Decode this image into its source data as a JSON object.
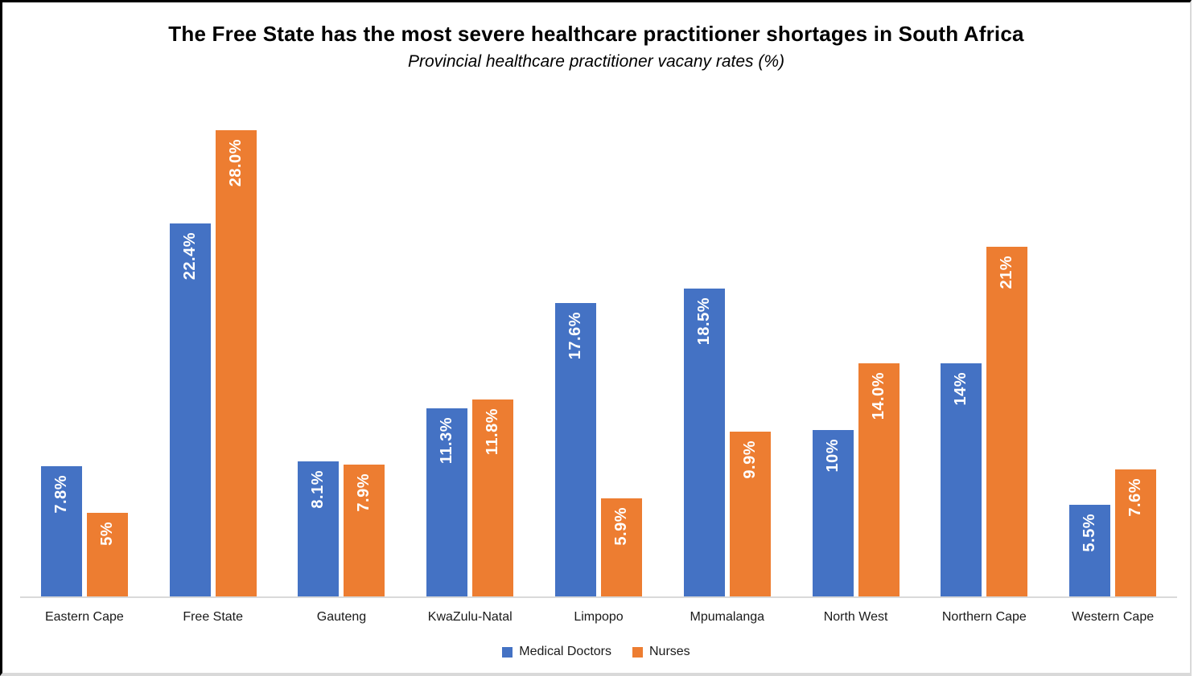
{
  "chart_data": {
    "type": "bar",
    "title": "The Free State has the most severe healthcare practitioner shortages in South Africa",
    "subtitle": "Provincial healthcare practitioner vacany rates (%)",
    "categories": [
      "Eastern Cape",
      "Free State",
      "Gauteng",
      "KwaZulu-Natal",
      "Limpopo",
      "Mpumalanga",
      "North West",
      "Northern Cape",
      "Western Cape"
    ],
    "series": [
      {
        "name": "Medical Doctors",
        "color": "#4472C4",
        "values": [
          7.8,
          22.4,
          8.1,
          11.3,
          17.6,
          18.5,
          10,
          14,
          5.5
        ],
        "labels": [
          "7.8%",
          "22.4%",
          "8.1%",
          "11.3%",
          "17.6%",
          "18.5%",
          "10%",
          "14%",
          "5.5%"
        ]
      },
      {
        "name": "Nurses",
        "color": "#ED7D31",
        "values": [
          5,
          28,
          7.9,
          11.8,
          5.9,
          9.9,
          14,
          21,
          7.6
        ],
        "labels": [
          "5%",
          "28.0%",
          "7.9%",
          "11.8%",
          "5.9%",
          "9.9%",
          "14.0%",
          "21%",
          "7.6%"
        ]
      }
    ],
    "xlabel": "",
    "ylabel": "",
    "ylim": [
      0,
      30.4
    ],
    "grid": false,
    "legend_position": "bottom",
    "data_label_color": "#FFFFFF",
    "axis_line_color": "#D9D9D9"
  }
}
